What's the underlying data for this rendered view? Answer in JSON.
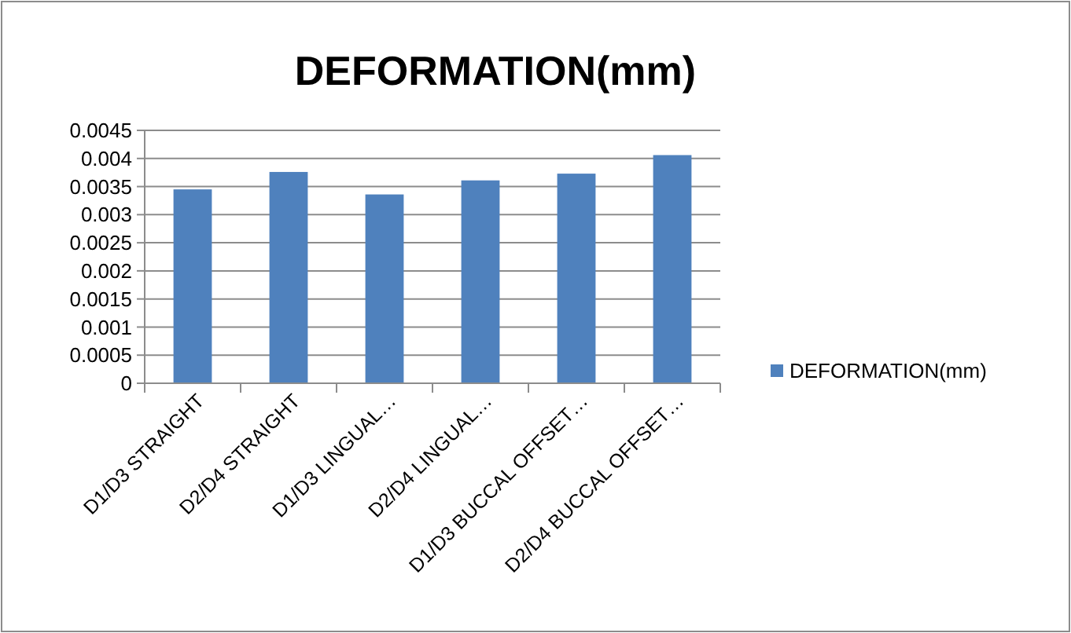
{
  "chart_data": {
    "type": "bar",
    "title": "DEFORMATION(mm)",
    "categories": [
      "D1/D3  STRAIGHT",
      "D2/D4 STRAIGHT",
      "D1/D3 LINGUAL…",
      "D2/D4 LINGUAL…",
      "D1/D3 BUCCAL OFFSET…",
      "D2/D4 BUCCAL OFFSET…"
    ],
    "series": [
      {
        "name": "DEFORMATION(mm)",
        "color": "#4f81bd",
        "values": [
          0.00345,
          0.00376,
          0.00336,
          0.00361,
          0.00373,
          0.00406
        ]
      }
    ],
    "ylim": [
      0,
      0.0045
    ],
    "yticks": [
      0,
      0.0005,
      0.001,
      0.0015,
      0.002,
      0.0025,
      0.003,
      0.0035,
      0.004,
      0.0045
    ],
    "grid": "y",
    "legend": "right"
  }
}
